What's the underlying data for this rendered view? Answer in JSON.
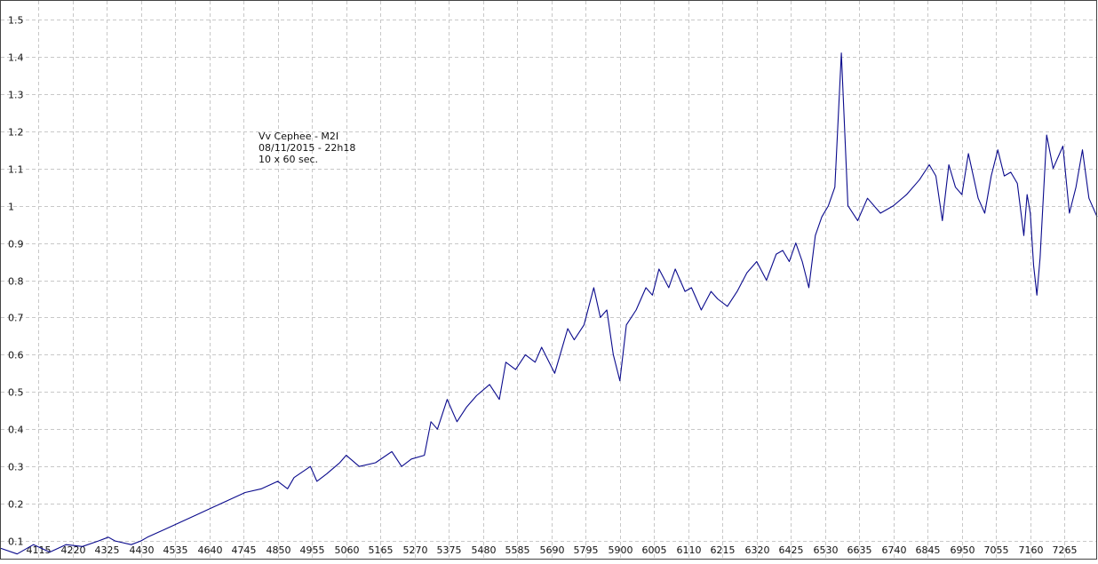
{
  "chart_data": {
    "type": "line",
    "title": "",
    "xlabel": "",
    "ylabel": "",
    "annotations": [
      "Vv Cephee - M2I",
      "08/11/2015 - 22h18",
      "10 x 60 sec."
    ],
    "xlim": [
      4000,
      7365
    ],
    "ylim": [
      0.05,
      1.55
    ],
    "grid": true,
    "x_ticks": [
      4115,
      4220,
      4325,
      4430,
      4535,
      4640,
      4745,
      4850,
      4955,
      5060,
      5165,
      5270,
      5375,
      5480,
      5585,
      5690,
      5795,
      5900,
      6005,
      6110,
      6215,
      6320,
      6425,
      6530,
      6635,
      6740,
      6845,
      6950,
      7055,
      7160,
      7265
    ],
    "x_tick_labels": [
      "4115",
      "4220",
      "4325",
      "4430",
      "4535",
      "4640",
      "4745",
      "4850",
      "4955",
      "5060",
      "5165",
      "5270",
      "5375",
      "5480",
      "5585",
      "5690",
      "5795",
      "5900",
      "6005",
      "6110",
      "6215",
      "6320",
      "6425",
      "6530",
      "6635",
      "6740",
      "6845",
      "6950",
      "7055",
      "7160",
      "7265"
    ],
    "y_ticks": [
      0.1,
      0.2,
      0.3,
      0.4,
      0.5,
      0.6,
      0.7,
      0.8,
      0.9,
      1.0,
      1.1,
      1.2,
      1.3,
      1.4,
      1.5
    ],
    "y_tick_labels": [
      "0.1",
      "0.2",
      "0.3",
      "0.4",
      "0.5",
      "0.6",
      "0.7",
      "0.8",
      "0.9",
      "1",
      "1.1",
      "1.2",
      "1.3",
      "1.4",
      "1.5"
    ],
    "colors": {
      "series": "#0a0a8c",
      "grid": "#c8c8c8"
    },
    "series": [
      {
        "x": [
          4000,
          4050,
          4100,
          4150,
          4200,
          4250,
          4300,
          4330,
          4350,
          4400,
          4430,
          4450,
          4500,
          4550,
          4600,
          4650,
          4700,
          4750,
          4800,
          4850,
          4880,
          4900,
          4950,
          4970,
          5000,
          5040,
          5060,
          5100,
          5150,
          5200,
          5230,
          5260,
          5300,
          5320,
          5340,
          5370,
          5400,
          5430,
          5460,
          5500,
          5530,
          5550,
          5580,
          5610,
          5640,
          5660,
          5700,
          5740,
          5760,
          5790,
          5820,
          5840,
          5860,
          5880,
          5900,
          5920,
          5950,
          5980,
          6000,
          6020,
          6050,
          6070,
          6100,
          6120,
          6150,
          6180,
          6200,
          6230,
          6260,
          6290,
          6320,
          6350,
          6380,
          6400,
          6420,
          6440,
          6460,
          6480,
          6500,
          6520,
          6540,
          6560,
          6580,
          6600,
          6630,
          6660,
          6700,
          6740,
          6780,
          6820,
          6850,
          6870,
          6890,
          6910,
          6930,
          6950,
          6970,
          7000,
          7020,
          7040,
          7060,
          7080,
          7100,
          7120,
          7140,
          7150,
          7160,
          7170,
          7180,
          7190,
          7210,
          7230,
          7260,
          7280,
          7300,
          7320,
          7340,
          7365
        ],
        "y": [
          0.08,
          0.065,
          0.09,
          0.07,
          0.09,
          0.085,
          0.1,
          0.11,
          0.1,
          0.09,
          0.1,
          0.11,
          0.13,
          0.15,
          0.17,
          0.19,
          0.21,
          0.23,
          0.24,
          0.26,
          0.24,
          0.27,
          0.3,
          0.26,
          0.28,
          0.31,
          0.33,
          0.3,
          0.31,
          0.34,
          0.3,
          0.32,
          0.33,
          0.42,
          0.4,
          0.48,
          0.42,
          0.46,
          0.49,
          0.52,
          0.48,
          0.58,
          0.56,
          0.6,
          0.58,
          0.62,
          0.55,
          0.67,
          0.64,
          0.68,
          0.78,
          0.7,
          0.72,
          0.6,
          0.53,
          0.68,
          0.72,
          0.78,
          0.76,
          0.83,
          0.78,
          0.83,
          0.77,
          0.78,
          0.72,
          0.77,
          0.75,
          0.73,
          0.77,
          0.82,
          0.85,
          0.8,
          0.87,
          0.88,
          0.85,
          0.9,
          0.85,
          0.78,
          0.92,
          0.97,
          1.0,
          1.05,
          1.41,
          1.0,
          0.96,
          1.02,
          0.98,
          1.0,
          1.03,
          1.07,
          1.11,
          1.08,
          0.96,
          1.11,
          1.05,
          1.03,
          1.14,
          1.02,
          0.98,
          1.08,
          1.15,
          1.08,
          1.09,
          1.06,
          0.92,
          1.03,
          0.98,
          0.84,
          0.76,
          0.86,
          1.19,
          1.1,
          1.16,
          0.98,
          1.05,
          1.15,
          1.02,
          0.97
        ]
      }
    ]
  }
}
